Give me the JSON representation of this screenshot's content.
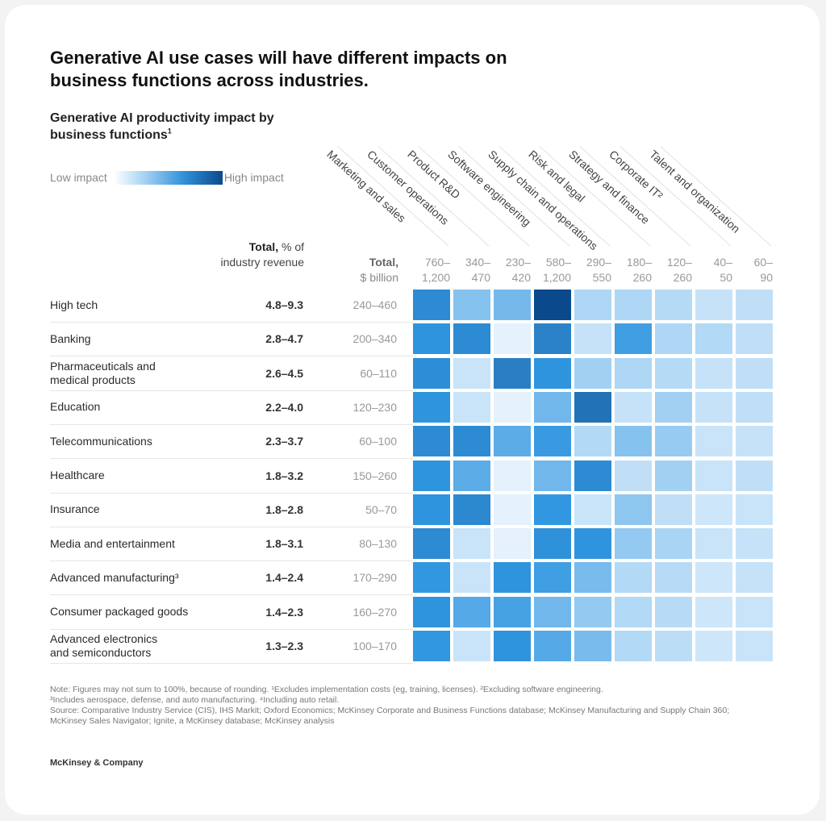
{
  "headline": "Generative AI use cases will have different impacts on business functions across industries.",
  "subtitle": "Generative AI productivity impact by business functions",
  "subtitle_footnote": "1",
  "legend": {
    "low": "Low impact",
    "high": "High impact"
  },
  "headers": {
    "pct_bold": "Total,",
    "pct_rest": " % of industry revenue",
    "bil_bold": "Total,",
    "bil_rest": "$ billion"
  },
  "notes": {
    "line1": "Note: Figures may not sum to 100%, because of rounding. ¹Excludes implementation costs (eg, training, licenses). ²Excluding software engineering.",
    "line2": "³Includes aerospace, defense, and auto manufacturing. ⁴Including auto retail.",
    "line3": "Source: Comparative Industry Service (CIS), IHS Markit; Oxford Economics; McKinsey Corporate and Business Functions database; McKinsey Manufacturing and Supply Chain 360; McKinsey Sales Navigator; Ignite, a McKinsey database; McKinsey analysis"
  },
  "brand": "McKinsey & Company",
  "colors": {
    "low": "#eaf4fc",
    "mid": "#2f95e0",
    "high": "#0a4a8c"
  },
  "chart_data": {
    "type": "heatmap",
    "title": "Generative AI productivity impact by business functions",
    "value_scale": "relative impact 0 (low) to 1 (high), estimated from cell shading",
    "columns": [
      {
        "name": "Marketing and sales",
        "total_bil": "760–\n1,200"
      },
      {
        "name": "Customer operations",
        "total_bil": "340–\n470"
      },
      {
        "name": "Product R&D",
        "total_bil": "230–\n420"
      },
      {
        "name": "Software engineering",
        "total_bil": "580–\n1,200"
      },
      {
        "name": "Supply chain and operations",
        "total_bil": "290–\n550"
      },
      {
        "name": "Risk and legal",
        "total_bil": "180–\n260"
      },
      {
        "name": "Strategy and finance",
        "total_bil": "120–\n260"
      },
      {
        "name": "Corporate IT²",
        "total_bil": "40–\n50"
      },
      {
        "name": "Talent and organization",
        "total_bil": "60–\n90"
      }
    ],
    "rows": [
      {
        "industry": "High tech",
        "pct": "4.8–9.3",
        "bil": "240–460",
        "values": [
          0.72,
          0.4,
          0.45,
          1.0,
          0.28,
          0.28,
          0.25,
          0.18,
          0.2
        ]
      },
      {
        "industry": "Banking",
        "pct": "2.8–4.7",
        "bil": "200–340",
        "values": [
          0.66,
          0.72,
          0.04,
          0.78,
          0.18,
          0.6,
          0.28,
          0.26,
          0.2
        ]
      },
      {
        "industry": "Pharmaceuticals and\nmedical products",
        "pct": "2.6–4.5",
        "bil": "60–110",
        "values": [
          0.7,
          0.16,
          0.8,
          0.66,
          0.32,
          0.28,
          0.25,
          0.18,
          0.2
        ]
      },
      {
        "industry": "Education",
        "pct": "2.2–4.0",
        "bil": "120–230",
        "values": [
          0.66,
          0.16,
          0.04,
          0.46,
          0.85,
          0.18,
          0.32,
          0.18,
          0.2
        ]
      },
      {
        "industry": "Telecommunications",
        "pct": "2.3–3.7",
        "bil": "60–100",
        "values": [
          0.72,
          0.72,
          0.52,
          0.62,
          0.26,
          0.4,
          0.35,
          0.16,
          0.18
        ]
      },
      {
        "industry": "Healthcare",
        "pct": "1.8–3.2",
        "bil": "150–260",
        "values": [
          0.66,
          0.52,
          0.04,
          0.46,
          0.72,
          0.2,
          0.32,
          0.16,
          0.2
        ]
      },
      {
        "industry": "Insurance",
        "pct": "1.8–2.8",
        "bil": "50–70",
        "values": [
          0.66,
          0.74,
          0.04,
          0.64,
          0.16,
          0.38,
          0.2,
          0.14,
          0.16
        ]
      },
      {
        "industry": "Media and entertainment",
        "pct": "1.8–3.1",
        "bil": "80–130",
        "values": [
          0.72,
          0.16,
          0.04,
          0.68,
          0.66,
          0.36,
          0.3,
          0.16,
          0.18
        ]
      },
      {
        "industry": "Advanced manufacturing³",
        "pct": "1.4–2.4",
        "bil": "170–290",
        "values": [
          0.64,
          0.16,
          0.66,
          0.6,
          0.44,
          0.26,
          0.24,
          0.14,
          0.18
        ]
      },
      {
        "industry": "Consumer packaged goods",
        "pct": "1.4–2.3",
        "bil": "160–270",
        "values": [
          0.66,
          0.54,
          0.58,
          0.46,
          0.36,
          0.26,
          0.24,
          0.14,
          0.16
        ]
      },
      {
        "industry": "Advanced electronics\nand semiconductors",
        "pct": "1.3–2.3",
        "bil": "100–170",
        "values": [
          0.64,
          0.16,
          0.66,
          0.54,
          0.44,
          0.26,
          0.22,
          0.14,
          0.16
        ]
      }
    ],
    "legend": {
      "low": "Low impact",
      "high": "High impact",
      "placement": "top-left"
    }
  }
}
